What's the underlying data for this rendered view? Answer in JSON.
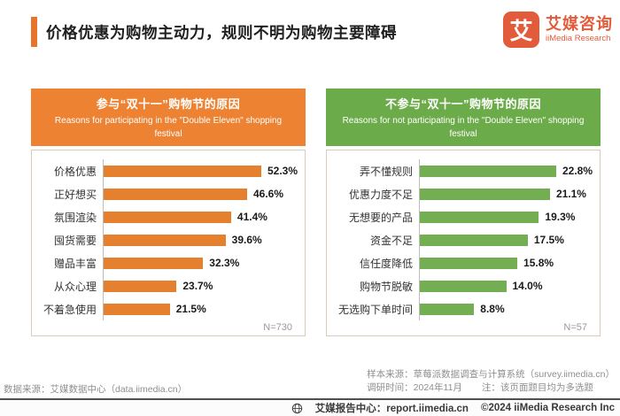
{
  "page": {
    "title": "价格优惠为购物主动力，规则不明为购物主要障碍",
    "logo": {
      "glyph": "艾",
      "brand_cn": "艾媒咨询",
      "brand_en": "iiMedia Research"
    }
  },
  "chart_data": [
    {
      "type": "bar",
      "orientation": "horizontal",
      "title": "参与“双十一”购物节的原因",
      "subtitle": "Reasons for participating in the \"Double Eleven\" shopping festival",
      "categories": [
        "价格优惠",
        "正好想买",
        "氛围渲染",
        "囤货需要",
        "赠品丰富",
        "从众心理",
        "不着急使用"
      ],
      "values": [
        52.3,
        46.6,
        41.4,
        39.6,
        32.3,
        23.7,
        21.5
      ],
      "value_suffix": "%",
      "sample_label": "N=730",
      "bar_color": "#e5812e",
      "header_color": "#ed8233",
      "xlim": [
        0,
        63
      ],
      "grid": false,
      "legend": false
    },
    {
      "type": "bar",
      "orientation": "horizontal",
      "title": "不参与“双十一”购物节的原因",
      "subtitle": "Reasons for not participating in the \"Double Eleven\" shopping festival",
      "categories": [
        "弄不懂规则",
        "优惠力度不足",
        "无想要的产品",
        "资金不足",
        "信任度降低",
        "购物节脱敏",
        "无选购下单时间"
      ],
      "values": [
        22.8,
        21.1,
        19.3,
        17.5,
        15.8,
        14.0,
        8.8
      ],
      "value_suffix": "%",
      "sample_label": "N=57",
      "bar_color": "#74ae52",
      "header_color": "#6cab49",
      "xlim": [
        0,
        28
      ],
      "grid": false,
      "legend": false
    }
  ],
  "footer": {
    "data_source": "数据来源：艾媒数据中心（data.iimedia.cn）",
    "sample_source": "样本来源：草莓派数据调查与计算系统（survey.iimedia.cn）",
    "survey_time": "调研时间：2024年11月",
    "note": "注：该页面题目均为多选题",
    "report_center": "艾媒报告中心：report.iimedia.cn",
    "copyright": "©2024  iiMedia Research Inc"
  }
}
